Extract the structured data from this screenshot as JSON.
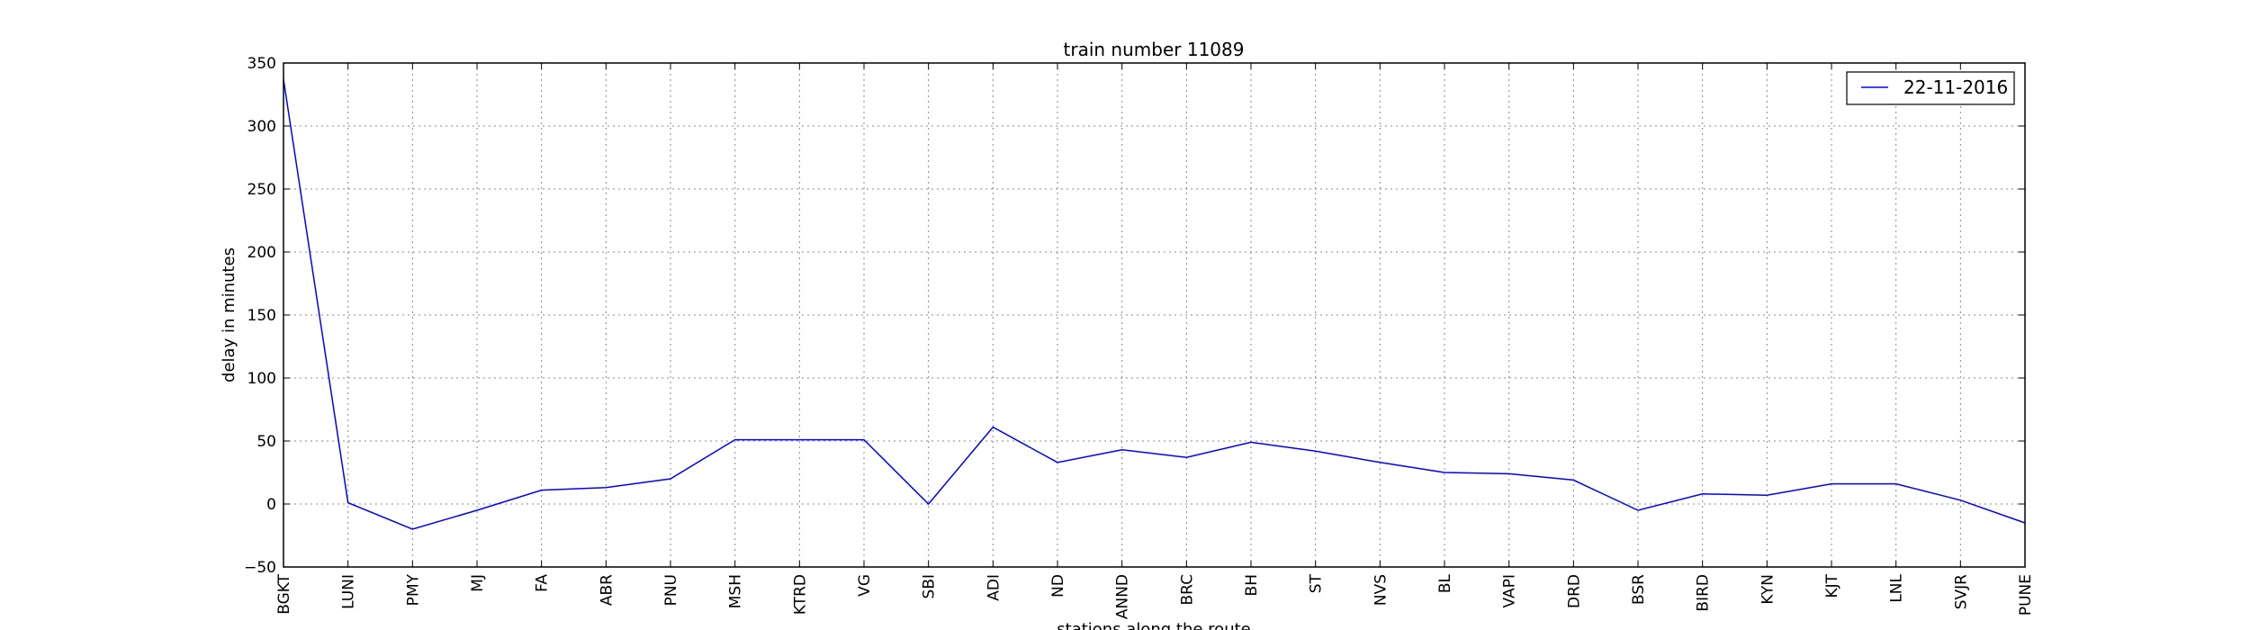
{
  "chart_data": {
    "type": "line",
    "title": "train number 11089",
    "xlabel": "stations along the route",
    "ylabel": "delay in minutes",
    "ylim": [
      -50,
      350
    ],
    "yticks": [
      -50,
      0,
      50,
      100,
      150,
      200,
      250,
      300,
      350
    ],
    "grid": true,
    "legend_position": "top-right",
    "categories": [
      "BGKT",
      "LUNI",
      "PMY",
      "MJ",
      "FA",
      "ABR",
      "PNU",
      "MSH",
      "KTRD",
      "VG",
      "SBI",
      "ADI",
      "ND",
      "ANND",
      "BRC",
      "BH",
      "ST",
      "NVS",
      "BL",
      "VAPI",
      "DRD",
      "BSR",
      "BIRD",
      "KYN",
      "KJT",
      "LNL",
      "SVJR",
      "PUNE"
    ],
    "series": [
      {
        "name": "22-11-2016",
        "color": "#0000ff",
        "values": [
          337,
          1,
          -20,
          -5,
          11,
          13,
          20,
          51,
          51,
          51,
          0,
          61,
          33,
          43,
          37,
          49,
          42,
          33,
          25,
          24,
          19,
          -5,
          8,
          7,
          16,
          16,
          3,
          -15
        ]
      }
    ]
  }
}
